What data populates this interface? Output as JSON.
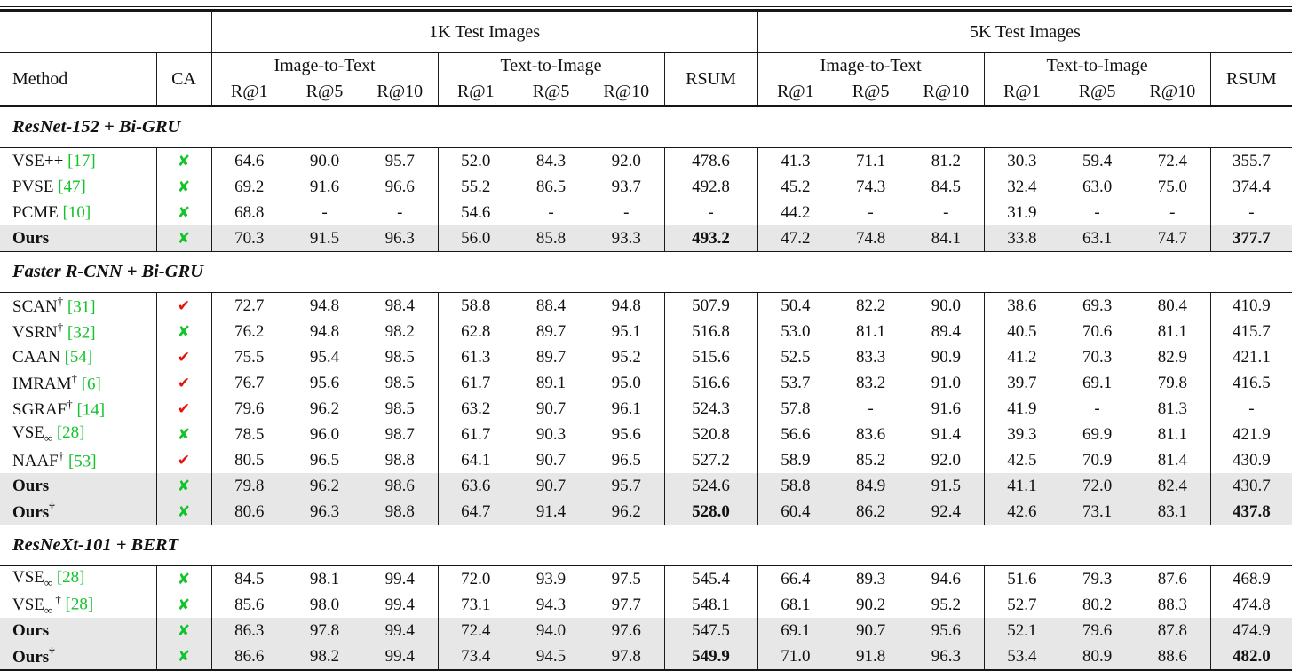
{
  "table": {
    "group_headers": [
      "1K Test Images",
      "5K Test Images"
    ],
    "headers": {
      "method": "Method",
      "ca": "CA",
      "i2t": "Image-to-Text",
      "t2i": "Text-to-Image",
      "rsum": "RSUM",
      "recalls": [
        "R@1",
        "R@5",
        "R@10"
      ]
    },
    "colors": {
      "green": "#13c32c",
      "red": "#e3120b",
      "highlight": "#e7e7e7"
    },
    "marks": {
      "check": "✔",
      "cross": "✘"
    },
    "sections": [
      {
        "title": "ResNet-152 + Bi-GRU",
        "rows": [
          {
            "name": "VSE++",
            "sub": "",
            "sup": "",
            "cite": "[17]",
            "bold": false,
            "ca": "cross",
            "hl": false,
            "boldIdx": [],
            "v": [
              "64.6",
              "90.0",
              "95.7",
              "52.0",
              "84.3",
              "92.0",
              "478.6",
              "41.3",
              "71.1",
              "81.2",
              "30.3",
              "59.4",
              "72.4",
              "355.7"
            ]
          },
          {
            "name": "PVSE",
            "sub": "",
            "sup": "",
            "cite": "[47]",
            "bold": false,
            "ca": "cross",
            "hl": false,
            "boldIdx": [],
            "v": [
              "69.2",
              "91.6",
              "96.6",
              "55.2",
              "86.5",
              "93.7",
              "492.8",
              "45.2",
              "74.3",
              "84.5",
              "32.4",
              "63.0",
              "75.0",
              "374.4"
            ]
          },
          {
            "name": "PCME",
            "sub": "",
            "sup": "",
            "cite": "[10]",
            "bold": false,
            "ca": "cross",
            "hl": false,
            "boldIdx": [],
            "v": [
              "68.8",
              "-",
              "-",
              "54.6",
              "-",
              "-",
              "-",
              "44.2",
              "-",
              "-",
              "31.9",
              "-",
              "-",
              "-"
            ]
          },
          {
            "name": "Ours",
            "sub": "",
            "sup": "",
            "cite": "",
            "bold": true,
            "ca": "cross",
            "hl": true,
            "boldIdx": [
              6,
              13
            ],
            "v": [
              "70.3",
              "91.5",
              "96.3",
              "56.0",
              "85.8",
              "93.3",
              "493.2",
              "47.2",
              "74.8",
              "84.1",
              "33.8",
              "63.1",
              "74.7",
              "377.7"
            ]
          }
        ]
      },
      {
        "title": "Faster R-CNN + Bi-GRU",
        "rows": [
          {
            "name": "SCAN",
            "sub": "",
            "sup": "†",
            "cite": "[31]",
            "bold": false,
            "ca": "check",
            "hl": false,
            "boldIdx": [],
            "v": [
              "72.7",
              "94.8",
              "98.4",
              "58.8",
              "88.4",
              "94.8",
              "507.9",
              "50.4",
              "82.2",
              "90.0",
              "38.6",
              "69.3",
              "80.4",
              "410.9"
            ]
          },
          {
            "name": "VSRN",
            "sub": "",
            "sup": "†",
            "cite": "[32]",
            "bold": false,
            "ca": "cross",
            "hl": false,
            "boldIdx": [],
            "v": [
              "76.2",
              "94.8",
              "98.2",
              "62.8",
              "89.7",
              "95.1",
              "516.8",
              "53.0",
              "81.1",
              "89.4",
              "40.5",
              "70.6",
              "81.1",
              "415.7"
            ]
          },
          {
            "name": "CAAN",
            "sub": "",
            "sup": "",
            "cite": "[54]",
            "bold": false,
            "ca": "check",
            "hl": false,
            "boldIdx": [],
            "v": [
              "75.5",
              "95.4",
              "98.5",
              "61.3",
              "89.7",
              "95.2",
              "515.6",
              "52.5",
              "83.3",
              "90.9",
              "41.2",
              "70.3",
              "82.9",
              "421.1"
            ]
          },
          {
            "name": "IMRAM",
            "sub": "",
            "sup": "†",
            "cite": "[6]",
            "bold": false,
            "ca": "check",
            "hl": false,
            "boldIdx": [],
            "v": [
              "76.7",
              "95.6",
              "98.5",
              "61.7",
              "89.1",
              "95.0",
              "516.6",
              "53.7",
              "83.2",
              "91.0",
              "39.7",
              "69.1",
              "79.8",
              "416.5"
            ]
          },
          {
            "name": "SGRAF",
            "sub": "",
            "sup": "†",
            "cite": "[14]",
            "bold": false,
            "ca": "check",
            "hl": false,
            "boldIdx": [],
            "v": [
              "79.6",
              "96.2",
              "98.5",
              "63.2",
              "90.7",
              "96.1",
              "524.3",
              "57.8",
              "-",
              "91.6",
              "41.9",
              "-",
              "81.3",
              "-"
            ]
          },
          {
            "name": "VSE",
            "sub": "∞",
            "sup": "",
            "cite": "[28]",
            "bold": false,
            "ca": "cross",
            "hl": false,
            "boldIdx": [],
            "v": [
              "78.5",
              "96.0",
              "98.7",
              "61.7",
              "90.3",
              "95.6",
              "520.8",
              "56.6",
              "83.6",
              "91.4",
              "39.3",
              "69.9",
              "81.1",
              "421.9"
            ]
          },
          {
            "name": "NAAF",
            "sub": "",
            "sup": "†",
            "cite": "[53]",
            "bold": false,
            "ca": "check",
            "hl": false,
            "boldIdx": [],
            "v": [
              "80.5",
              "96.5",
              "98.8",
              "64.1",
              "90.7",
              "96.5",
              "527.2",
              "58.9",
              "85.2",
              "92.0",
              "42.5",
              "70.9",
              "81.4",
              "430.9"
            ]
          },
          {
            "name": "Ours",
            "sub": "",
            "sup": "",
            "cite": "",
            "bold": true,
            "ca": "cross",
            "hl": true,
            "boldIdx": [],
            "v": [
              "79.8",
              "96.2",
              "98.6",
              "63.6",
              "90.7",
              "95.7",
              "524.6",
              "58.8",
              "84.9",
              "91.5",
              "41.1",
              "72.0",
              "82.4",
              "430.7"
            ]
          },
          {
            "name": "Ours",
            "sub": "",
            "sup": "†",
            "cite": "",
            "bold": true,
            "ca": "cross",
            "hl": true,
            "boldIdx": [
              6,
              13
            ],
            "v": [
              "80.6",
              "96.3",
              "98.8",
              "64.7",
              "91.4",
              "96.2",
              "528.0",
              "60.4",
              "86.2",
              "92.4",
              "42.6",
              "73.1",
              "83.1",
              "437.8"
            ]
          }
        ]
      },
      {
        "title": "ResNeXt-101 + BERT",
        "rows": [
          {
            "name": "VSE",
            "sub": "∞",
            "sup": "",
            "cite": "[28]",
            "bold": false,
            "ca": "cross",
            "hl": false,
            "boldIdx": [],
            "v": [
              "84.5",
              "98.1",
              "99.4",
              "72.0",
              "93.9",
              "97.5",
              "545.4",
              "66.4",
              "89.3",
              "94.6",
              "51.6",
              "79.3",
              "87.6",
              "468.9"
            ]
          },
          {
            "name": "VSE",
            "sub": "∞",
            "sup": " †",
            "cite": "[28]",
            "bold": false,
            "ca": "cross",
            "hl": false,
            "boldIdx": [],
            "v": [
              "85.6",
              "98.0",
              "99.4",
              "73.1",
              "94.3",
              "97.7",
              "548.1",
              "68.1",
              "90.2",
              "95.2",
              "52.7",
              "80.2",
              "88.3",
              "474.8"
            ]
          },
          {
            "name": "Ours",
            "sub": "",
            "sup": "",
            "cite": "",
            "bold": true,
            "ca": "cross",
            "hl": true,
            "boldIdx": [],
            "v": [
              "86.3",
              "97.8",
              "99.4",
              "72.4",
              "94.0",
              "97.6",
              "547.5",
              "69.1",
              "90.7",
              "95.6",
              "52.1",
              "79.6",
              "87.8",
              "474.9"
            ]
          },
          {
            "name": "Ours",
            "sub": "",
            "sup": "†",
            "cite": "",
            "bold": true,
            "ca": "cross",
            "hl": true,
            "boldIdx": [
              6,
              13
            ],
            "v": [
              "86.6",
              "98.2",
              "99.4",
              "73.4",
              "94.5",
              "97.8",
              "549.9",
              "71.0",
              "91.8",
              "96.3",
              "53.4",
              "80.9",
              "88.6",
              "482.0"
            ]
          }
        ]
      }
    ]
  }
}
